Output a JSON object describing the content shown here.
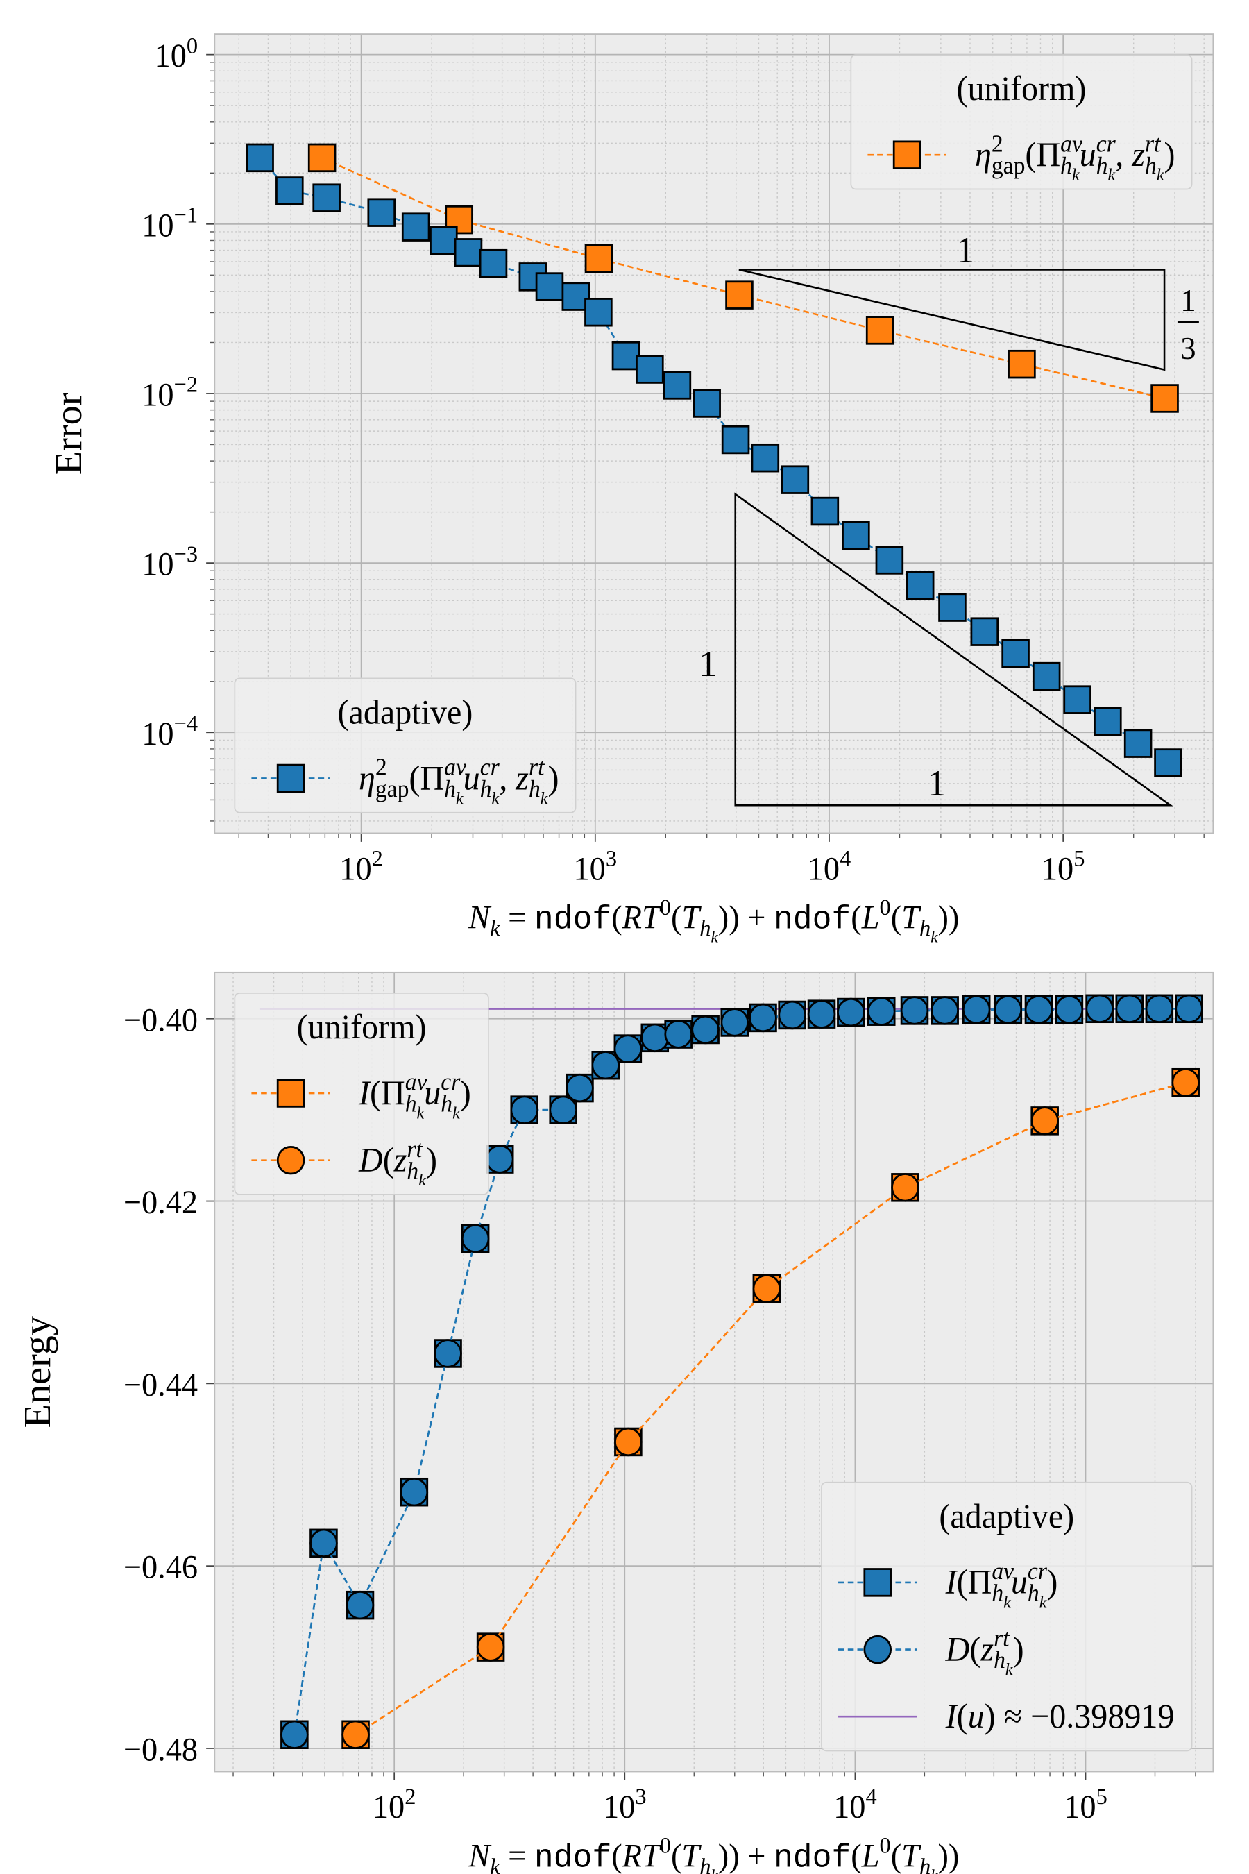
{
  "chart_data": [
    {
      "type": "line",
      "xlog": true,
      "ylog": true,
      "grid": true,
      "minor_grid": true,
      "xlim": [
        23.6,
        438000
      ],
      "ylim": [
        2.54e-05,
        1.32
      ],
      "xticks": [
        {
          "value": 100,
          "label": [
            "10",
            "2"
          ]
        },
        {
          "value": 1000,
          "label": [
            "10",
            "3"
          ]
        },
        {
          "value": 10000,
          "label": [
            "10",
            "4"
          ]
        },
        {
          "value": 100000,
          "label": [
            "10",
            "5"
          ]
        }
      ],
      "yticks": [
        {
          "value": 0.0001,
          "label": [
            "10",
            "−4"
          ]
        },
        {
          "value": 0.001,
          "label": [
            "10",
            "−3"
          ]
        },
        {
          "value": 0.01,
          "label": [
            "10",
            "−2"
          ]
        },
        {
          "value": 0.1,
          "label": [
            "10",
            "−1"
          ]
        },
        {
          "value": 1,
          "label": [
            "10",
            "0"
          ]
        }
      ],
      "xlabel": [
        [
          "N",
          "i"
        ],
        [
          "k",
          "_i"
        ],
        [
          " = ",
          ""
        ],
        [
          "ndof",
          "m"
        ],
        [
          "(",
          ""
        ],
        [
          "RT",
          "i"
        ],
        [
          "0",
          "^"
        ],
        [
          "(",
          ""
        ],
        [
          "T",
          "i"
        ],
        [
          "h",
          "_i"
        ],
        [
          "k",
          "__i"
        ],
        [
          "))",
          ""
        ],
        [
          " + ",
          ""
        ],
        [
          "ndof",
          "m"
        ],
        [
          "(",
          ""
        ],
        [
          "L",
          "i"
        ],
        [
          "0",
          "^"
        ],
        [
          "(",
          ""
        ],
        [
          "T",
          "i"
        ],
        [
          "h",
          "_i"
        ],
        [
          "k",
          "__i"
        ],
        [
          "))",
          ""
        ]
      ],
      "ylabel": "Error",
      "series": [
        {
          "name": [
            [
              "η",
              "i"
            ],
            [
              "2",
              "^"
            ],
            [
              "gap",
              "_"
            ],
            [
              "(Π",
              ""
            ],
            [
              "av",
              "^i"
            ],
            [
              "h",
              "_i"
            ],
            [
              "k",
              "__i"
            ],
            [
              "u",
              "i"
            ],
            [
              "cr",
              "^i"
            ],
            [
              "h",
              "_i"
            ],
            [
              "k",
              "__i"
            ],
            [
              ", ",
              ""
            ],
            [
              "z",
              "i"
            ],
            [
              "rt",
              "^i"
            ],
            [
              "h",
              "_i"
            ],
            [
              "k",
              "__i"
            ],
            [
              ")",
              ""
            ]
          ],
          "color": "#ff7f0e",
          "marker": "s",
          "x": [
            68,
            262,
            1036,
            4130,
            16480,
            66500,
            271700
          ],
          "values": [
            0.246,
            0.106,
            0.0625,
            0.0381,
            0.0236,
            0.0149,
            0.00936
          ]
        },
        {
          "name": [
            [
              "η",
              "i"
            ],
            [
              "2",
              "^"
            ],
            [
              "gap",
              "_"
            ],
            [
              "(Π",
              ""
            ],
            [
              "av",
              "^i"
            ],
            [
              "h",
              "_i"
            ],
            [
              "k",
              "__i"
            ],
            [
              "u",
              "i"
            ],
            [
              "cr",
              "^i"
            ],
            [
              "h",
              "_i"
            ],
            [
              "k",
              "__i"
            ],
            [
              ", ",
              ""
            ],
            [
              "z",
              "i"
            ],
            [
              "rt",
              "^i"
            ],
            [
              "h",
              "_i"
            ],
            [
              "k",
              "__i"
            ],
            [
              ")",
              ""
            ]
          ],
          "color": "#1f77b4",
          "marker": "s",
          "x": [
            36.9,
            49.4,
            71.1,
            122,
            171,
            225,
            287,
            367,
            541,
            638,
            826,
            1032,
            1352,
            1710,
            2240,
            3000,
            3980,
            5330,
            7150,
            9590,
            13000,
            18100,
            24500,
            33600,
            46100,
            62600,
            84900,
            115000,
            155000,
            209000,
            281000
          ],
          "values": [
            0.246,
            0.157,
            0.1426,
            0.117,
            0.096,
            0.08,
            0.0679,
            0.0585,
            0.0488,
            0.0427,
            0.0374,
            0.0302,
            0.0167,
            0.0139,
            0.0112,
            0.00876,
            0.00534,
            0.00417,
            0.0031,
            0.00202,
            0.00145,
            0.00104,
            0.000737,
            0.000547,
            0.000393,
            0.000292,
            0.000214,
            0.000156,
            0.000116,
            8.61e-05,
            6.62e-05
          ]
        }
      ],
      "legends": [
        {
          "title": "(uniform)",
          "loc": "upper right",
          "series": [
            0
          ]
        },
        {
          "title": "(adaptive)",
          "loc": "lower left",
          "series": [
            1
          ]
        }
      ],
      "slope_triangles": [
        {
          "run": "1",
          "rise_num": "1",
          "rise_den": "3"
        },
        {
          "run": "1",
          "rise": "1"
        }
      ]
    },
    {
      "type": "line",
      "xlog": true,
      "ylog": false,
      "grid": true,
      "minor_grid": true,
      "xlim": [
        16.6,
        358000
      ],
      "ylim": [
        -0.48254,
        -0.39492
      ],
      "xticks": [
        {
          "value": 100,
          "label": [
            "10",
            "2"
          ]
        },
        {
          "value": 1000,
          "label": [
            "10",
            "3"
          ]
        },
        {
          "value": 10000,
          "label": [
            "10",
            "4"
          ]
        },
        {
          "value": 100000,
          "label": [
            "10",
            "5"
          ]
        }
      ],
      "yticks": [
        {
          "value": -0.48,
          "label": "−0.48"
        },
        {
          "value": -0.46,
          "label": "−0.46"
        },
        {
          "value": -0.44,
          "label": "−0.44"
        },
        {
          "value": -0.42,
          "label": "−0.42"
        },
        {
          "value": -0.4,
          "label": "−0.40"
        }
      ],
      "xlabel": [
        [
          "N",
          "i"
        ],
        [
          "k",
          "_i"
        ],
        [
          " = ",
          ""
        ],
        [
          "ndof",
          "m"
        ],
        [
          "(",
          ""
        ],
        [
          "RT",
          "i"
        ],
        [
          "0",
          "^"
        ],
        [
          "(",
          ""
        ],
        [
          "T",
          "i"
        ],
        [
          "h",
          "_i"
        ],
        [
          "k",
          "__i"
        ],
        [
          "))",
          ""
        ],
        [
          " + ",
          ""
        ],
        [
          "ndof",
          "m"
        ],
        [
          "(",
          ""
        ],
        [
          "L",
          "i"
        ],
        [
          "0",
          "^"
        ],
        [
          "(",
          ""
        ],
        [
          "T",
          "i"
        ],
        [
          "h",
          "_i"
        ],
        [
          "k",
          "__i"
        ],
        [
          "))",
          ""
        ]
      ],
      "ylabel": "Energy",
      "series": [
        {
          "name": [
            [
              "I",
              "i"
            ],
            [
              "(Π",
              ""
            ],
            [
              "av",
              "^i"
            ],
            [
              "h",
              "_i"
            ],
            [
              "k",
              "__i"
            ],
            [
              "u",
              "i"
            ],
            [
              "cr",
              "^i"
            ],
            [
              "h",
              "_i"
            ],
            [
              "k",
              "__i"
            ],
            [
              ")",
              ""
            ]
          ],
          "color": "#ff7f0e",
          "marker": "s",
          "x": [
            68,
            262,
            1036,
            4130,
            16480,
            66500,
            271700
          ],
          "values": [
            -0.4785,
            -0.4689,
            -0.4464,
            -0.4296,
            -0.4185,
            -0.4112,
            -0.407
          ]
        },
        {
          "name": [
            [
              "D",
              "i"
            ],
            [
              "(",
              ""
            ],
            [
              "z",
              "i"
            ],
            [
              "rt",
              "^i"
            ],
            [
              "h",
              "_i"
            ],
            [
              "k",
              "__i"
            ],
            [
              ")",
              ""
            ]
          ],
          "color": "#ff7f0e",
          "marker": "o",
          "x": [
            68,
            262,
            1036,
            4130,
            16480,
            66500,
            271700
          ],
          "values": [
            -0.4785,
            -0.4689,
            -0.4464,
            -0.4296,
            -0.4185,
            -0.4112,
            -0.407
          ]
        },
        {
          "name": [
            [
              "I",
              "i"
            ],
            [
              "(Π",
              ""
            ],
            [
              "av",
              "^i"
            ],
            [
              "h",
              "_i"
            ],
            [
              "k",
              "__i"
            ],
            [
              "u",
              "i"
            ],
            [
              "cr",
              "^i"
            ],
            [
              "h",
              "_i"
            ],
            [
              "k",
              "__i"
            ],
            [
              ")",
              ""
            ]
          ],
          "color": "#1f77b4",
          "marker": "s",
          "x": [
            36.9,
            49.4,
            71.1,
            122,
            171,
            225,
            287,
            367,
            541,
            638,
            826,
            1032,
            1352,
            1710,
            2240,
            3000,
            3980,
            5330,
            7150,
            9590,
            13000,
            18100,
            24500,
            33600,
            46100,
            62600,
            84900,
            115000,
            155000,
            209000,
            281000
          ],
          "values": [
            -0.4785,
            -0.4575,
            -0.4643,
            -0.4519,
            -0.4367,
            -0.4241,
            -0.4154,
            -0.41,
            -0.41,
            -0.4076,
            -0.4051,
            -0.4033,
            -0.4021,
            -0.4017,
            -0.4012,
            -0.4004,
            -0.3999,
            -0.3996,
            -0.3995,
            -0.3993,
            -0.3992,
            -0.3991,
            -0.3991,
            -0.399,
            -0.399,
            -0.399,
            -0.399,
            -0.3989,
            -0.3989,
            -0.3989,
            -0.3989
          ]
        },
        {
          "name": [
            [
              "D",
              "i"
            ],
            [
              "(",
              ""
            ],
            [
              "z",
              "i"
            ],
            [
              "rt",
              "^i"
            ],
            [
              "h",
              "_i"
            ],
            [
              "k",
              "__i"
            ],
            [
              ")",
              ""
            ]
          ],
          "color": "#1f77b4",
          "marker": "o",
          "x": [
            36.9,
            49.4,
            71.1,
            122,
            171,
            225,
            287,
            367,
            541,
            638,
            826,
            1032,
            1352,
            1710,
            2240,
            3000,
            3980,
            5330,
            7150,
            9590,
            13000,
            18100,
            24500,
            33600,
            46100,
            62600,
            84900,
            115000,
            155000,
            209000,
            281000
          ],
          "values": [
            -0.4785,
            -0.4575,
            -0.4643,
            -0.4519,
            -0.4367,
            -0.4241,
            -0.4154,
            -0.41,
            -0.41,
            -0.4076,
            -0.4051,
            -0.4033,
            -0.4021,
            -0.4017,
            -0.4012,
            -0.4004,
            -0.3999,
            -0.3996,
            -0.3995,
            -0.3993,
            -0.3992,
            -0.3991,
            -0.3991,
            -0.399,
            -0.399,
            -0.399,
            -0.399,
            -0.3989,
            -0.3989,
            -0.3989,
            -0.3989
          ]
        },
        {
          "name": [
            [
              "I",
              "i"
            ],
            [
              "(",
              ""
            ],
            [
              "u",
              "i"
            ],
            [
              ") ≈ −0.398919",
              ""
            ]
          ],
          "color": "#9467bd",
          "hline": -0.398919,
          "xspan": [
            26,
            141000
          ]
        }
      ],
      "legends": [
        {
          "title": "(uniform)",
          "loc": "upper left",
          "series": [
            0,
            1
          ]
        },
        {
          "title": "(adaptive)",
          "loc": "lower right",
          "series": [
            2,
            3,
            4
          ]
        }
      ]
    }
  ]
}
